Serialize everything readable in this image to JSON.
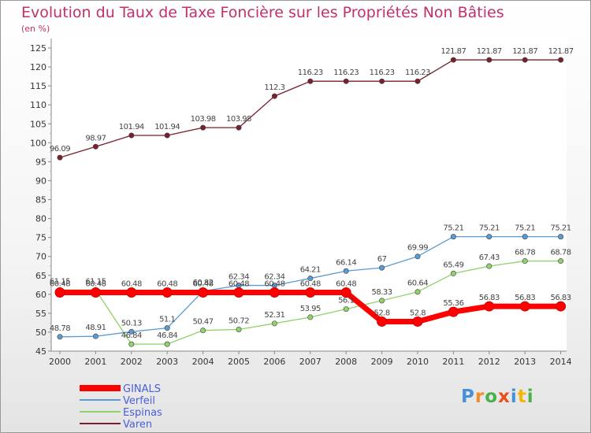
{
  "chart_data": {
    "type": "line",
    "title": "Evolution du Taux de Taxe Foncière sur les Propriétés Non Bâties",
    "ylabel": "(en %)",
    "xlabel": "",
    "ylim": [
      45,
      125
    ],
    "yticks": [
      45,
      50,
      55,
      60,
      65,
      70,
      75,
      80,
      85,
      90,
      95,
      100,
      105,
      110,
      115,
      120,
      125
    ],
    "x": [
      "2000",
      "2001",
      "2002",
      "2003",
      "2004",
      "2005",
      "2006",
      "2007",
      "2008",
      "2009",
      "2010",
      "2011",
      "2012",
      "2013",
      "2014"
    ],
    "series": [
      {
        "name": "GINALS",
        "color": "#ff0000",
        "values": [
          60.48,
          60.48,
          60.48,
          60.48,
          60.48,
          60.48,
          60.48,
          60.48,
          60.48,
          52.8,
          52.8,
          55.36,
          56.83,
          56.83,
          56.83
        ],
        "labels": [
          "60.48",
          "60.48",
          "60.48",
          "60.48",
          "60.48",
          "60.48",
          "60.48",
          "60.48",
          "60.48",
          "52.8",
          "52.8",
          "55.36",
          "56.83",
          "56.83",
          "56.83"
        ]
      },
      {
        "name": "Verfeil",
        "color": "#5b9bd5",
        "values": [
          48.78,
          48.91,
          50.13,
          51.1,
          60.82,
          62.34,
          62.34,
          64.21,
          66.14,
          67,
          69.99,
          75.21,
          75.21,
          75.21,
          75.21
        ],
        "labels": [
          "48.78",
          "48.91",
          "50.13",
          "51.1",
          "60.82",
          "62.34",
          "62.34",
          "64.21",
          "66.14",
          "67",
          "69.99",
          "75.21",
          "75.21",
          "75.21",
          "75.21"
        ]
      },
      {
        "name": "Espinas",
        "color": "#8fd16a",
        "values": [
          61.15,
          61.15,
          46.84,
          46.84,
          50.47,
          50.72,
          52.31,
          53.95,
          56.1,
          58.33,
          60.64,
          65.49,
          67.43,
          68.78,
          68.78
        ],
        "labels": [
          "61.15",
          "61.15",
          "46.84",
          "46.84",
          "50.47",
          "50.72",
          "52.31",
          "53.95",
          "56.1",
          "58.33",
          "60.64",
          "65.49",
          "67.43",
          "68.78",
          "68.78"
        ]
      },
      {
        "name": "Varen",
        "color": "#7a1f2b",
        "values": [
          96.09,
          98.97,
          101.94,
          101.94,
          103.98,
          103.98,
          112.3,
          116.23,
          116.23,
          116.23,
          116.23,
          121.87,
          121.87,
          121.87,
          121.87
        ],
        "labels": [
          "96.09",
          "98.97",
          "101.94",
          "101.94",
          "103.98",
          "103.98",
          "112.3",
          "116.23",
          "116.23",
          "116.23",
          "116.23",
          "121.87",
          "121.87",
          "121.87",
          "121.87"
        ]
      }
    ],
    "legend": "bottom-left",
    "grid": false
  },
  "logo": {
    "letters": [
      "P",
      "r",
      "o",
      "x",
      "i",
      "t",
      "i"
    ],
    "colors": [
      "#4a90d9",
      "#f28c28",
      "#4ab04a",
      "#e94e1b",
      "#4a90d9",
      "#f2b705",
      "#4ab04a"
    ]
  }
}
